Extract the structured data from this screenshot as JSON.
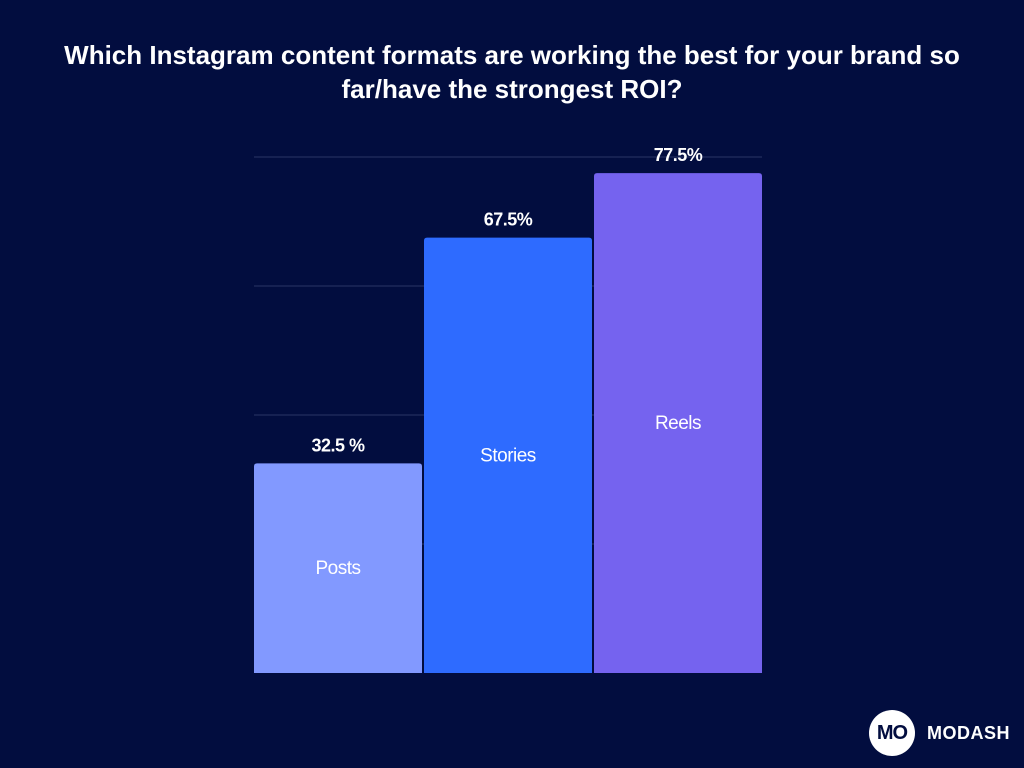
{
  "colors": {
    "background": "#020d3f",
    "grid": "#2a3566",
    "text": "#ffffff"
  },
  "chart_data": {
    "type": "bar",
    "title": "Which Instagram content formats are working the best for your brand so far/have the strongest ROI?",
    "categories": [
      "Posts",
      "Stories",
      "Reels"
    ],
    "values": [
      32.5,
      67.5,
      77.5
    ],
    "value_labels": [
      "32.5 %",
      "67.5%",
      "77.5%"
    ],
    "bar_colors": [
      "#8299ff",
      "#2e6bff",
      "#7563ef"
    ],
    "category_label_position": "inside-bar",
    "ylim": [
      0,
      80
    ],
    "grid": true,
    "xlabel": "",
    "ylabel": ""
  },
  "brand": {
    "logo_text": "MO",
    "name": "MODASH"
  }
}
